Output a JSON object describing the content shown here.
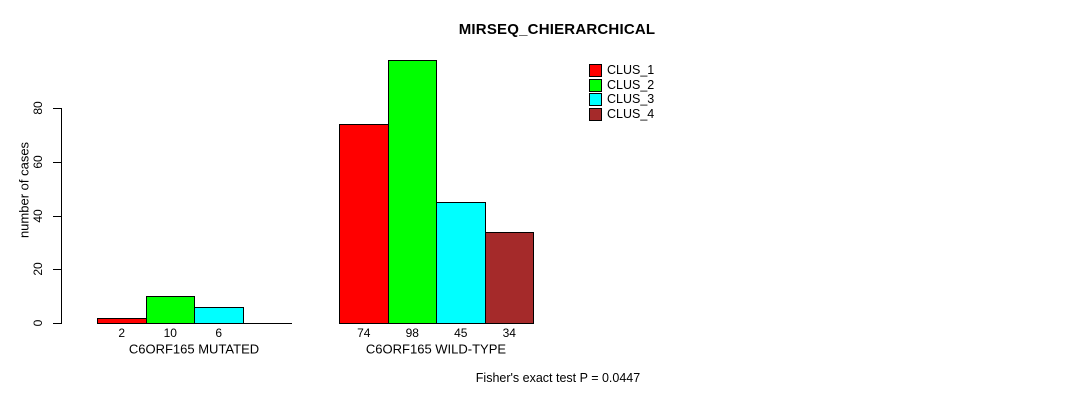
{
  "chart_data": {
    "type": "bar",
    "grouped": true,
    "title": "MIRSEQ_CHIERARCHICAL",
    "xlabel": "",
    "ylabel": "number of cases",
    "ylim": [
      0,
      80
    ],
    "yticks": [
      0,
      20,
      40,
      60,
      80
    ],
    "grid": false,
    "legend_position": "top-right",
    "axis_color": "#000000",
    "bar_border_color": "#000000",
    "categories": [
      "C6ORF165 MUTATED",
      "C6ORF165 WILD-TYPE"
    ],
    "series": [
      {
        "name": "CLUS_1",
        "color": "#FF0000",
        "values": [
          2,
          74
        ]
      },
      {
        "name": "CLUS_2",
        "color": "#00FF00",
        "values": [
          10,
          98
        ]
      },
      {
        "name": "CLUS_3",
        "color": "#00FFFF",
        "values": [
          6,
          45
        ]
      },
      {
        "name": "CLUS_4",
        "color": "#A52A2A",
        "values": [
          0,
          34
        ]
      }
    ],
    "bar_value_labels": [
      [
        "2",
        "10",
        "6",
        ""
      ],
      [
        "74",
        "98",
        "45",
        "34"
      ]
    ],
    "footnote": "Fisher's exact test P = 0.0447"
  }
}
